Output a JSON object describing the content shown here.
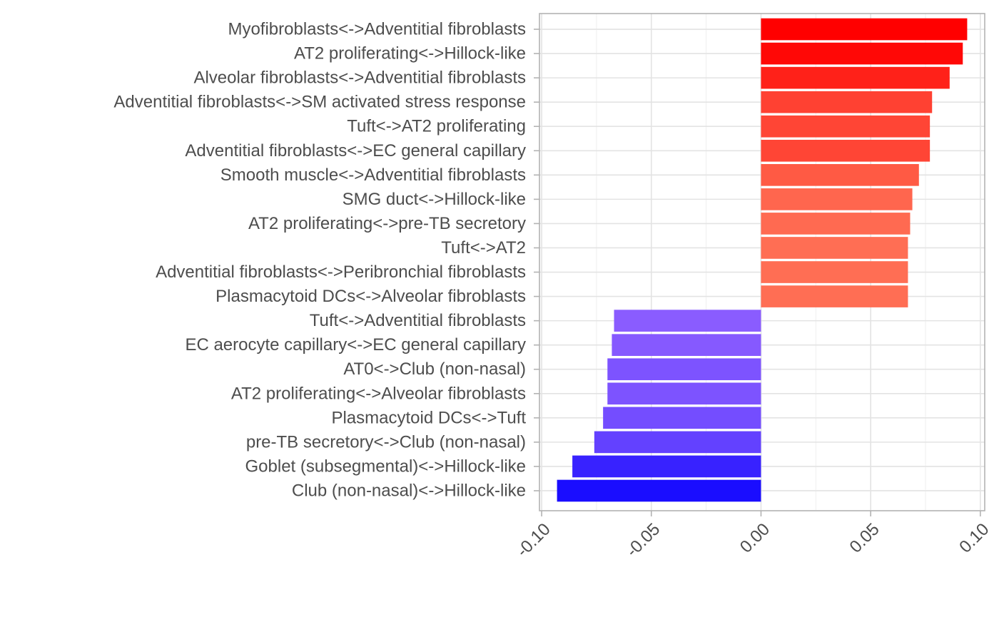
{
  "chart_data": {
    "type": "bar",
    "orientation": "horizontal",
    "title": "",
    "xlabel": "",
    "ylabel": "",
    "xlim": [
      -0.101,
      0.102
    ],
    "x_ticks": [
      -0.1,
      -0.05,
      0.0,
      0.05,
      0.1
    ],
    "x_tick_labels": [
      "-0.10",
      "-0.05",
      "0.00",
      "0.05",
      "0.10"
    ],
    "grid": true,
    "legend": "none",
    "categories": [
      "Myofibroblasts<->Adventitial fibroblasts",
      "AT2 proliferating<->Hillock-like",
      "Alveolar fibroblasts<->Adventitial fibroblasts",
      "Adventitial fibroblasts<->SM activated stress response",
      "Tuft<->AT2 proliferating",
      "Adventitial fibroblasts<->EC general capillary",
      "Smooth muscle<->Adventitial fibroblasts",
      "SMG duct<->Hillock-like",
      "AT2 proliferating<->pre-TB secretory",
      "Tuft<->AT2",
      "Adventitial fibroblasts<->Peribronchial fibroblasts",
      "Plasmacytoid DCs<->Alveolar fibroblasts",
      "Tuft<->Adventitial fibroblasts",
      "EC aerocyte capillary<->EC general capillary",
      "AT0<->Club (non-nasal)",
      "AT2 proliferating<->Alveolar fibroblasts",
      "Plasmacytoid DCs<->Tuft",
      "pre-TB secretory<->Club (non-nasal)",
      "Goblet (subsegmental)<->Hillock-like",
      "Club (non-nasal)<->Hillock-like"
    ],
    "values": [
      0.094,
      0.092,
      0.086,
      0.078,
      0.077,
      0.077,
      0.072,
      0.069,
      0.068,
      0.067,
      0.067,
      0.067,
      -0.067,
      -0.068,
      -0.07,
      -0.07,
      -0.072,
      -0.076,
      -0.086,
      -0.093
    ],
    "colors": {
      "positive_high": "#ff0000",
      "positive_low": "#ff6e54",
      "negative_low": "#8a5cff",
      "negative_high": "#1a0dff"
    }
  }
}
